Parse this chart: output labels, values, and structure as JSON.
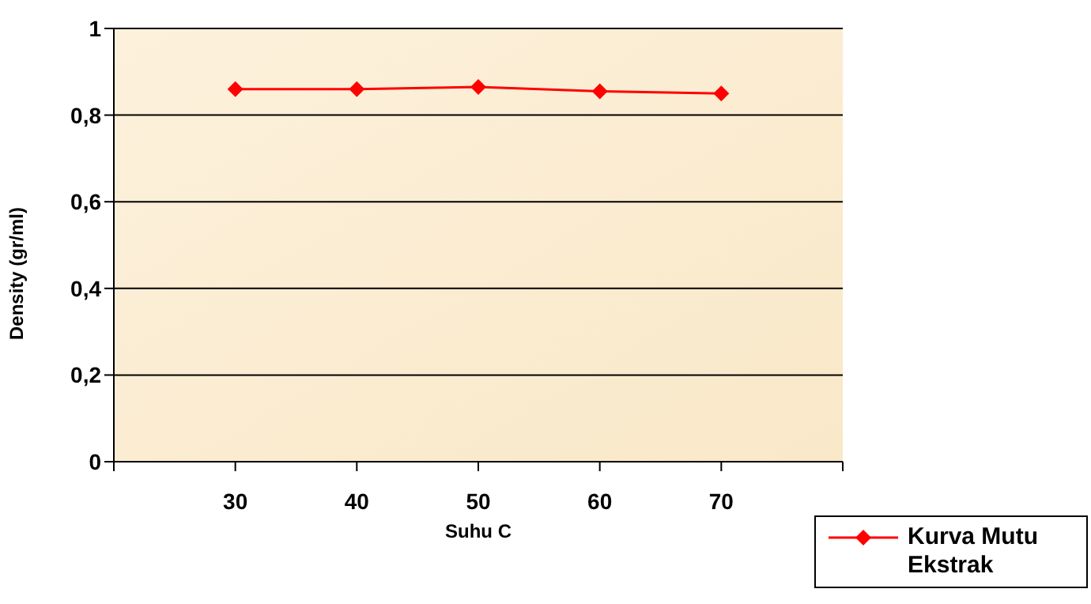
{
  "chart_data": {
    "type": "line",
    "xlabel": "Suhu  C",
    "ylabel": "Density  (gr/ml)",
    "x": [
      30,
      40,
      50,
      60,
      70
    ],
    "series": [
      {
        "name": "Kurva Mutu Ekstrak",
        "color": "#ff0000",
        "values": [
          0.86,
          0.86,
          0.865,
          0.855,
          0.85
        ]
      }
    ],
    "xlim": [
      20,
      80
    ],
    "xticks": [
      {
        "value": 20,
        "label": null
      },
      30,
      40,
      50,
      60,
      70,
      {
        "value": 80,
        "label": null
      }
    ],
    "ylim": [
      0,
      1
    ],
    "yticks": [
      0,
      {
        "value": 0.2,
        "label": "0,2"
      },
      {
        "value": 0.4,
        "label": "0,4"
      },
      {
        "value": 0.6,
        "label": "0,6"
      },
      {
        "value": 0.8,
        "label": "0,8"
      },
      1
    ],
    "grid": "y",
    "legend": "bottom right",
    "marker": "diamond",
    "line_style": "solid"
  }
}
